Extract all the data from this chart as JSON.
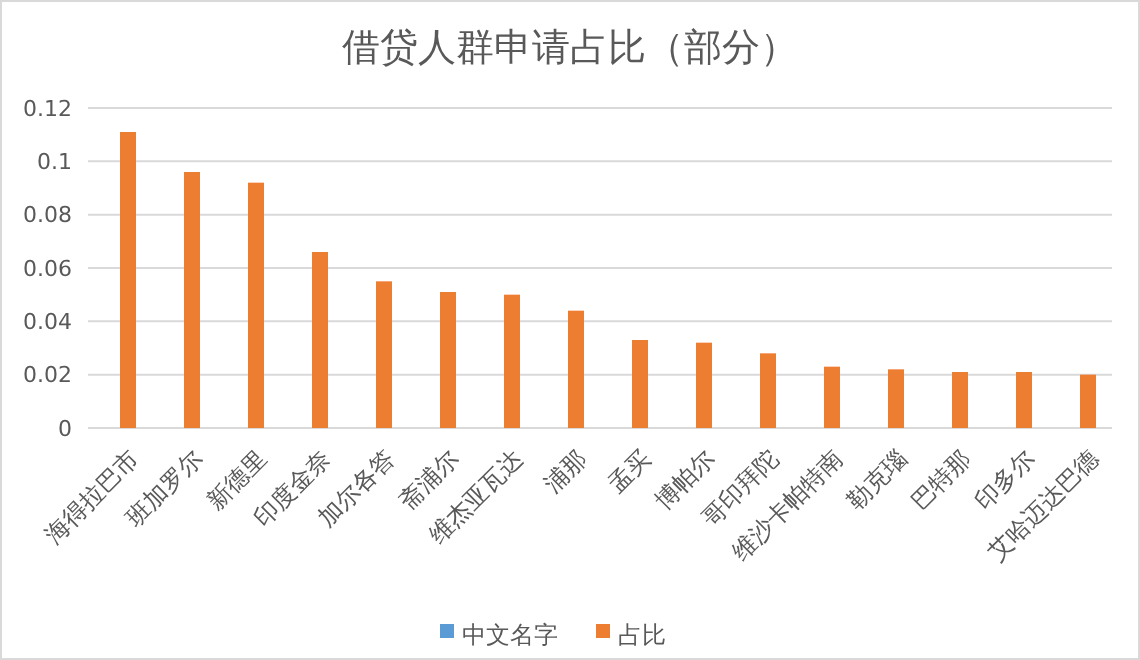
{
  "chart_data": {
    "type": "bar",
    "title": "借贷人群申请占比（部分）",
    "categories": [
      "海得拉巴市",
      "班加罗尔",
      "新德里",
      "印度金奈",
      "加尔各答",
      "斋浦尔",
      "维杰亚瓦达",
      "浦那",
      "孟买",
      "博帕尔",
      "哥印拜陀",
      "维沙卡帕特南",
      "勒克瑙",
      "巴特那",
      "印多尔",
      "艾哈迈达巴德"
    ],
    "series": [
      {
        "name": "中文名字",
        "color": "#5b9bd5",
        "values": [
          null,
          null,
          null,
          null,
          null,
          null,
          null,
          null,
          null,
          null,
          null,
          null,
          null,
          null,
          null,
          null
        ]
      },
      {
        "name": "占比",
        "color": "#ed7d31",
        "values": [
          0.111,
          0.096,
          0.092,
          0.066,
          0.055,
          0.051,
          0.05,
          0.044,
          0.033,
          0.032,
          0.028,
          0.023,
          0.022,
          0.021,
          0.021,
          0.02
        ]
      }
    ],
    "ylim": [
      0,
      0.12
    ],
    "yticks": [
      0,
      0.02,
      0.04,
      0.06,
      0.08,
      0.1,
      0.12
    ],
    "grid": "y",
    "legend": "bottom"
  }
}
